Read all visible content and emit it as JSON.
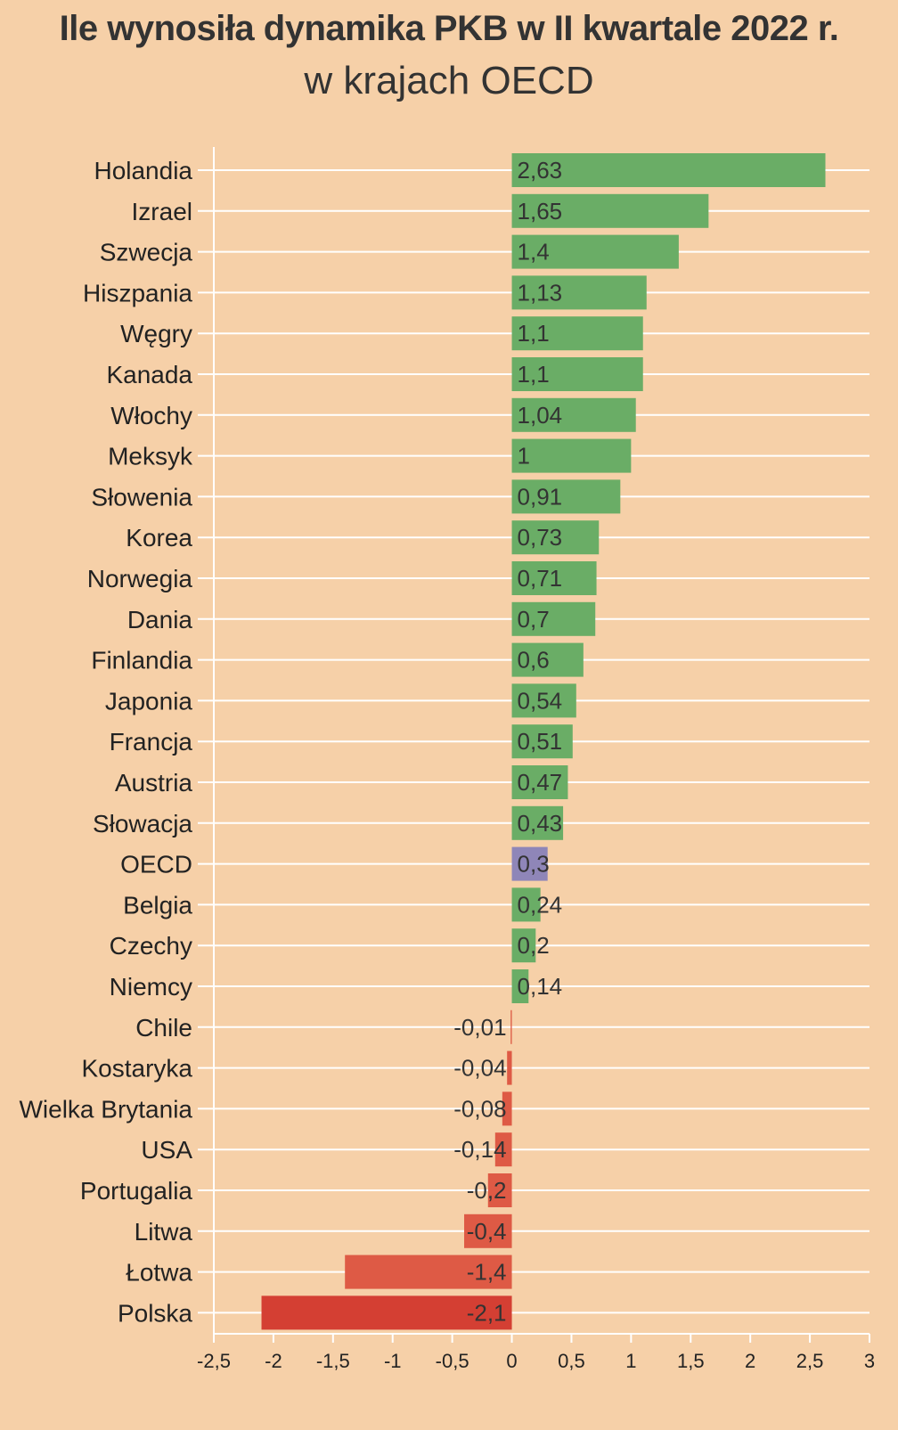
{
  "chart_data": {
    "type": "bar",
    "orientation": "horizontal",
    "title": "Ile wynosiła dynamika PKB w II kwartale 2022 r.",
    "subtitle": "w krajach OECD",
    "categories": [
      "Holandia",
      "Izrael",
      "Szwecja",
      "Hiszpania",
      "Węgry",
      "Kanada",
      "Włochy",
      "Meksyk",
      "Słowenia",
      "Korea",
      "Norwegia",
      "Dania",
      "Finlandia",
      "Japonia",
      "Francja",
      "Austria",
      "Słowacja",
      "OECD",
      "Belgia",
      "Czechy",
      "Niemcy",
      "Chile",
      "Kostaryka",
      "Wielka Brytania",
      "USA",
      "Portugalia",
      "Litwa",
      "Łotwa",
      "Polska"
    ],
    "values": [
      2.63,
      1.65,
      1.4,
      1.13,
      1.1,
      1.1,
      1.04,
      1,
      0.91,
      0.73,
      0.71,
      0.7,
      0.6,
      0.54,
      0.51,
      0.47,
      0.43,
      0.3,
      0.24,
      0.2,
      0.14,
      -0.01,
      -0.04,
      -0.08,
      -0.14,
      -0.2,
      -0.4,
      -1.4,
      -2.1
    ],
    "value_labels": [
      "2,63",
      "1,65",
      "1,4",
      "1,13",
      "1,1",
      "1,1",
      "1,04",
      "1",
      "0,91",
      "0,73",
      "0,71",
      "0,7",
      "0,6",
      "0,54",
      "0,51",
      "0,47",
      "0,43",
      "0,3",
      "0,24",
      "0,2",
      "0,14",
      "-0,01",
      "-0,04",
      "-0,08",
      "-0,14",
      "-0,2",
      "-0,4",
      "-1,4",
      "-2,1"
    ],
    "xlim": [
      -2.5,
      3
    ],
    "xticks": [
      -2.5,
      -2,
      -1.5,
      -1,
      -0.5,
      0,
      0.5,
      1,
      1.5,
      2,
      2.5,
      3
    ],
    "xtick_labels": [
      "-2,5",
      "-2",
      "-1,5",
      "-1",
      "-0,5",
      "0",
      "0,5",
      "1",
      "1,5",
      "2",
      "2,5",
      "3"
    ],
    "grid": true,
    "colors": {
      "positive": "#6aad66",
      "highlight": "#8f86b8",
      "negative": "#de5a45",
      "negative_strong": "#d43f33",
      "background": "#f6d0a8",
      "grid": "#ffffff"
    },
    "highlight_category": "OECD"
  }
}
